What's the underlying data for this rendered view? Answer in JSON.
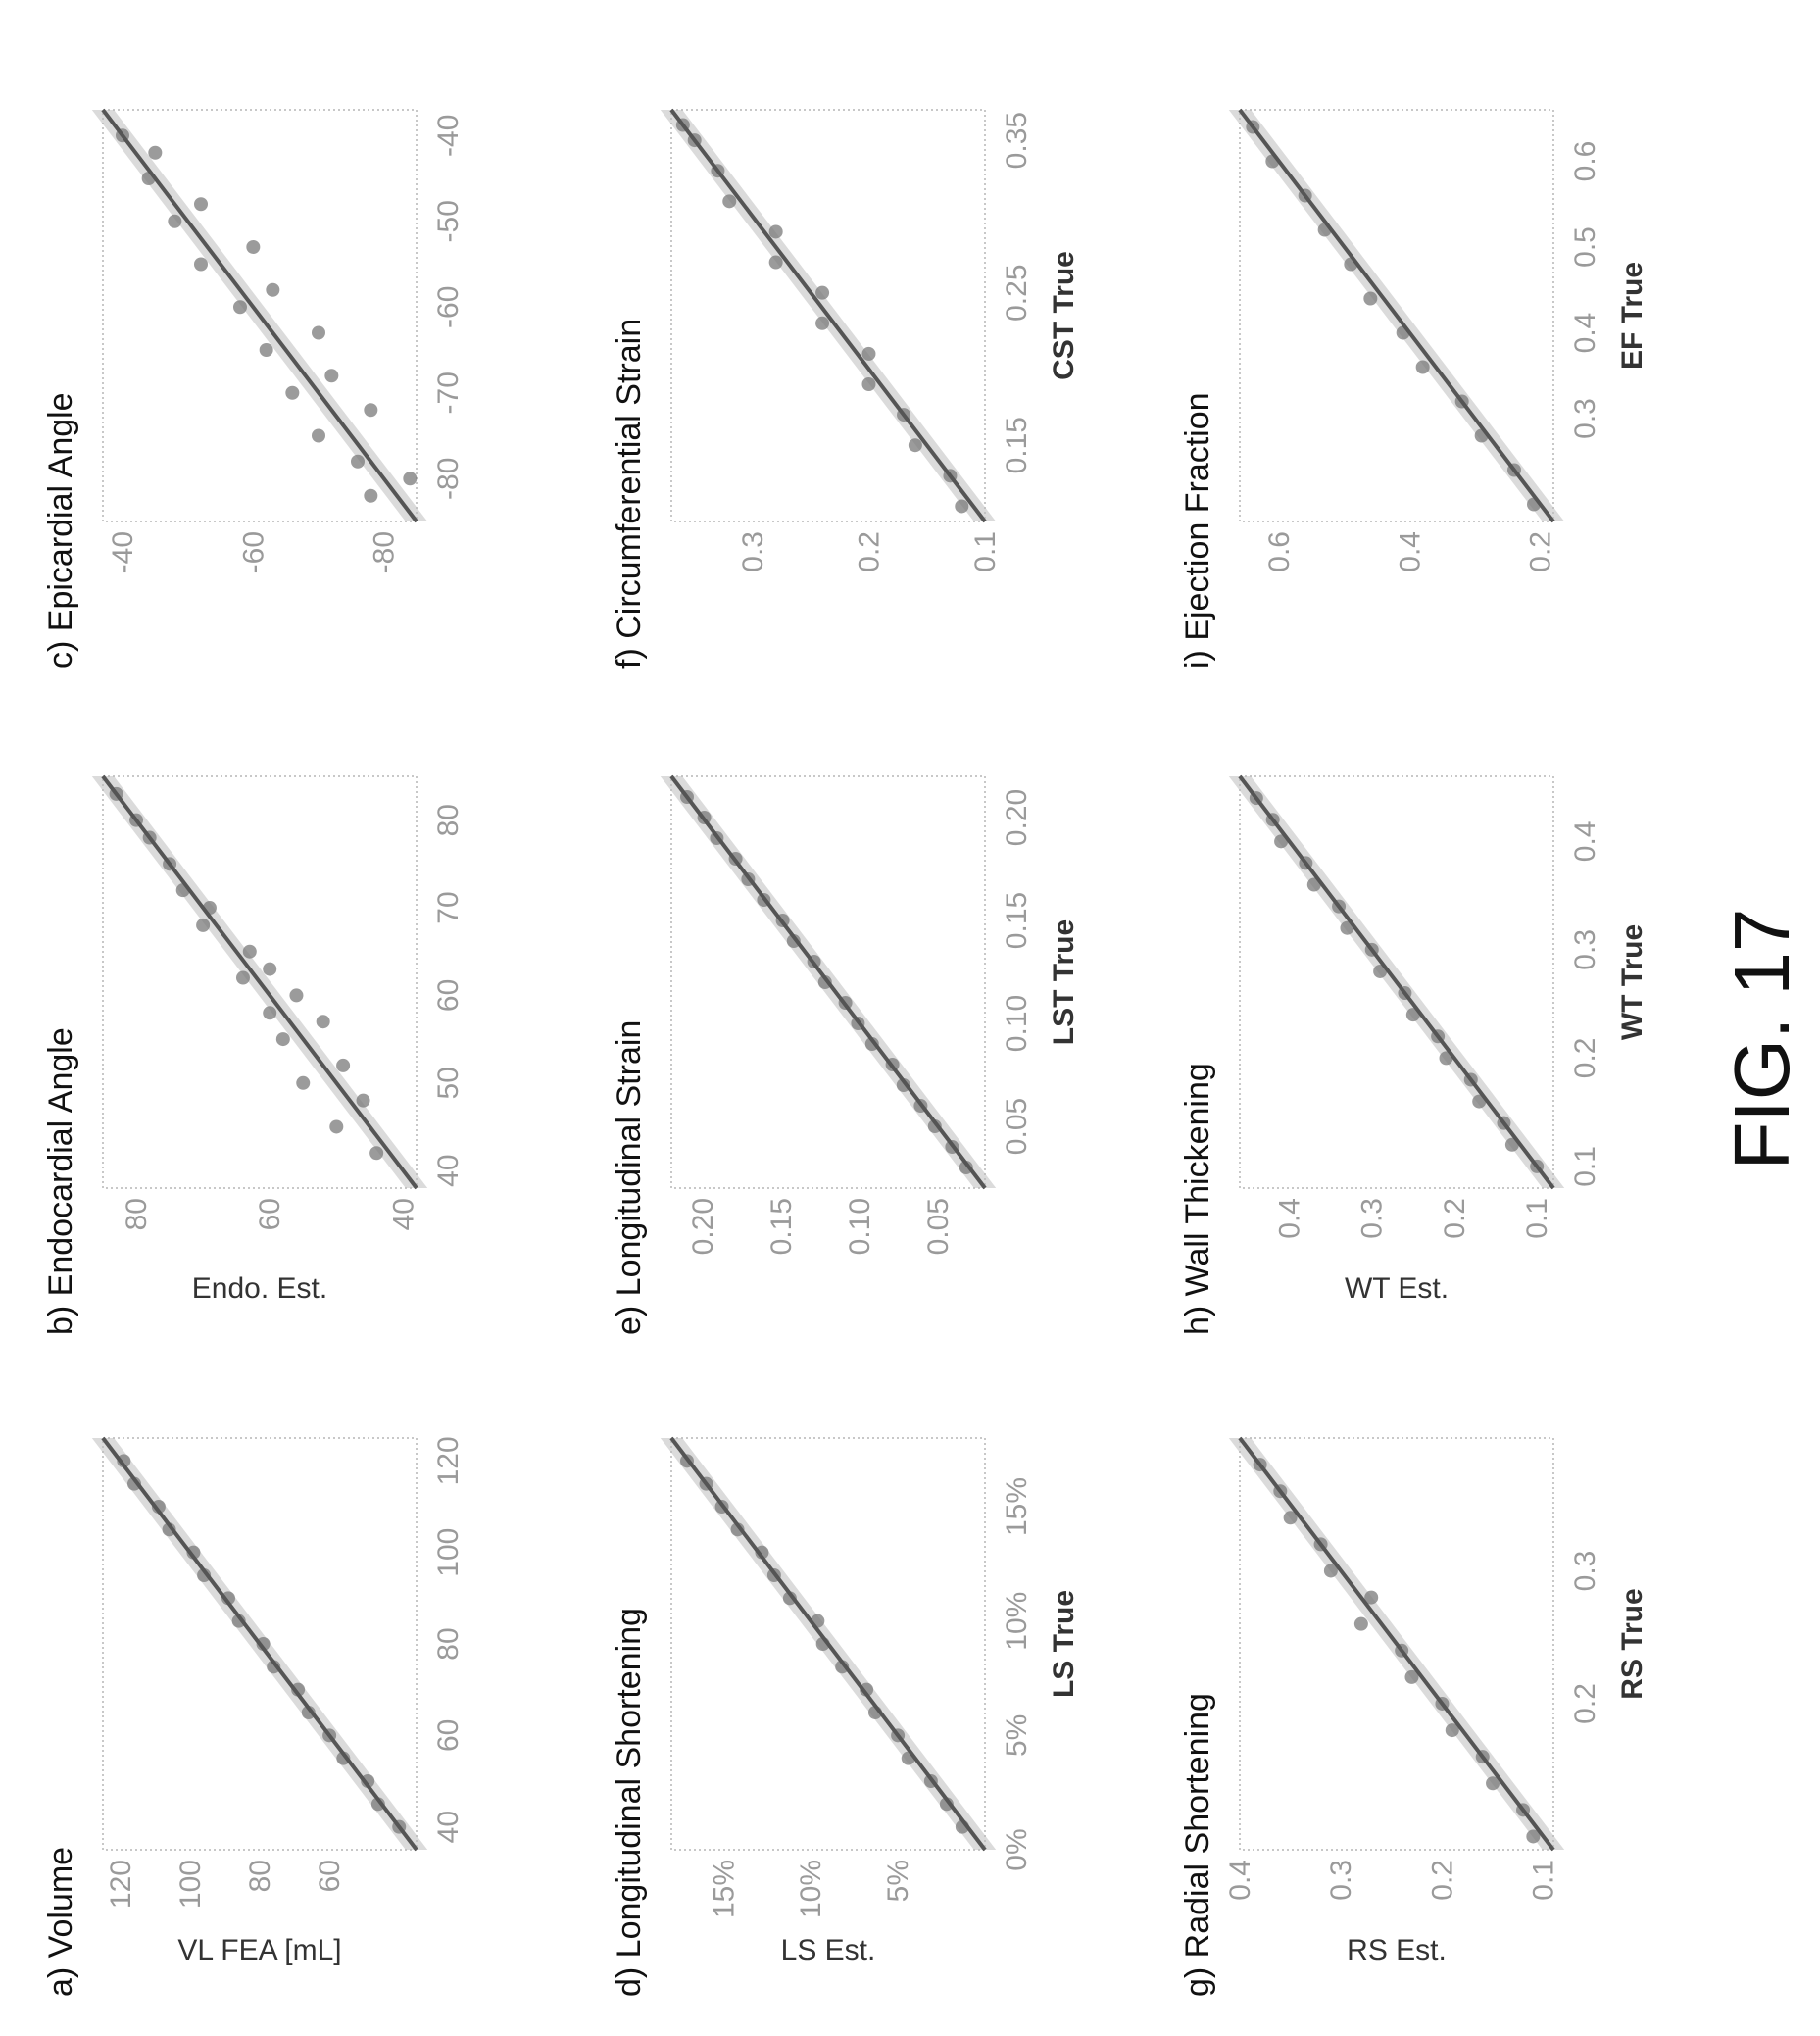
{
  "figure_caption": "FIG. 17",
  "colors": {
    "points": "#7a7a7a",
    "fit": "#555555",
    "tick": "#9a9a9a",
    "frame": "#c8c8c8"
  },
  "chart_data": [
    {
      "type": "scatter",
      "title": "a) Volume",
      "xlabel": "",
      "ylabel": "VL FEA [mL]",
      "xlim": [
        35,
        125
      ],
      "ylim": [
        35,
        125
      ],
      "xticks": [
        {
          "v": 40,
          "t": "40"
        },
        {
          "v": 60,
          "t": "60"
        },
        {
          "v": 80,
          "t": "80"
        },
        {
          "v": 100,
          "t": "100"
        },
        {
          "v": 120,
          "t": "120"
        }
      ],
      "yticks": [
        {
          "v": 60,
          "t": "60"
        },
        {
          "v": 80,
          "t": "80"
        },
        {
          "v": 100,
          "t": "100"
        },
        {
          "v": 120,
          "t": "120"
        }
      ],
      "x": [
        40,
        45,
        50,
        55,
        60,
        65,
        70,
        75,
        80,
        85,
        90,
        95,
        100,
        105,
        110,
        115,
        120
      ],
      "y": [
        40,
        46,
        49,
        56,
        60,
        66,
        69,
        76,
        79,
        86,
        89,
        96,
        99,
        106,
        109,
        116,
        119
      ]
    },
    {
      "type": "scatter",
      "title": "b) Endocardial Angle",
      "xlabel": "",
      "ylabel": "Endo. Est.",
      "xlim": [
        38,
        85
      ],
      "ylim": [
        38,
        85
      ],
      "xticks": [
        {
          "v": 40,
          "t": "40"
        },
        {
          "v": 50,
          "t": "50"
        },
        {
          "v": 60,
          "t": "60"
        },
        {
          "v": 70,
          "t": "70"
        },
        {
          "v": 80,
          "t": "80"
        }
      ],
      "yticks": [
        {
          "v": 40,
          "t": "40"
        },
        {
          "v": 60,
          "t": "60"
        },
        {
          "v": 80,
          "t": "80"
        }
      ],
      "x": [
        42,
        45,
        48,
        50,
        52,
        55,
        57,
        58,
        60,
        62,
        63,
        65,
        68,
        70,
        72,
        75,
        78,
        80,
        83
      ],
      "y": [
        44,
        50,
        46,
        55,
        49,
        58,
        52,
        60,
        56,
        64,
        60,
        63,
        70,
        69,
        73,
        75,
        78,
        80,
        83
      ]
    },
    {
      "type": "scatter",
      "title": "c) Epicardial Angle",
      "xlabel": "",
      "ylabel": "",
      "xlim": [
        -85,
        -37
      ],
      "ylim": [
        -85,
        -37
      ],
      "xticks": [
        {
          "v": -80,
          "t": "-80"
        },
        {
          "v": -70,
          "t": "-70"
        },
        {
          "v": -60,
          "t": "-60"
        },
        {
          "v": -50,
          "t": "-50"
        },
        {
          "v": -40,
          "t": "-40"
        }
      ],
      "yticks": [
        {
          "v": -80,
          "t": "-80"
        },
        {
          "v": -60,
          "t": "-60"
        },
        {
          "v": -40,
          "t": "-40"
        }
      ],
      "x": [
        -82,
        -80,
        -78,
        -75,
        -72,
        -70,
        -68,
        -65,
        -63,
        -60,
        -58,
        -55,
        -53,
        -50,
        -48,
        -45,
        -42,
        -40
      ],
      "y": [
        -78,
        -84,
        -76,
        -70,
        -78,
        -66,
        -72,
        -62,
        -70,
        -58,
        -63,
        -52,
        -60,
        -48,
        -52,
        -44,
        -45,
        -40
      ]
    },
    {
      "type": "scatter",
      "title": "d) Longitudinal Shortening",
      "xlabel": "LS True",
      "ylabel": "LS Est.",
      "xlim": [
        0,
        18
      ],
      "ylim": [
        0,
        18
      ],
      "xticks": [
        {
          "v": 0,
          "t": "0%"
        },
        {
          "v": 5,
          "t": "5%"
        },
        {
          "v": 10,
          "t": "10%"
        },
        {
          "v": 15,
          "t": "15%"
        }
      ],
      "yticks": [
        {
          "v": 5,
          "t": "5%"
        },
        {
          "v": 10,
          "t": "10%"
        },
        {
          "v": 15,
          "t": "15%"
        }
      ],
      "x": [
        1,
        2,
        3,
        4,
        5,
        6,
        7,
        8,
        9,
        10,
        11,
        12,
        13,
        14,
        15,
        16,
        17
      ],
      "y": [
        1.3,
        2.2,
        3.1,
        4.4,
        5.0,
        6.3,
        6.8,
        8.2,
        9.3,
        9.6,
        11.2,
        12.1,
        12.8,
        14.2,
        15.1,
        16.0,
        17.1
      ]
    },
    {
      "type": "scatter",
      "title": "e) Longitudinal Strain",
      "xlabel": "LST True",
      "ylabel": "",
      "xlim": [
        0.02,
        0.22
      ],
      "ylim": [
        0.02,
        0.22
      ],
      "xticks": [
        {
          "v": 0.05,
          "t": "0.05"
        },
        {
          "v": 0.1,
          "t": "0.10"
        },
        {
          "v": 0.15,
          "t": "0.15"
        },
        {
          "v": 0.2,
          "t": "0.20"
        }
      ],
      "yticks": [
        {
          "v": 0.05,
          "t": "0.05"
        },
        {
          "v": 0.1,
          "t": "0.10"
        },
        {
          "v": 0.15,
          "t": "0.15"
        },
        {
          "v": 0.2,
          "t": "0.20"
        }
      ],
      "x": [
        0.03,
        0.04,
        0.05,
        0.06,
        0.07,
        0.08,
        0.09,
        0.1,
        0.11,
        0.12,
        0.13,
        0.14,
        0.15,
        0.16,
        0.17,
        0.18,
        0.19,
        0.2,
        0.21
      ],
      "y": [
        0.032,
        0.041,
        0.052,
        0.061,
        0.072,
        0.079,
        0.092,
        0.101,
        0.109,
        0.122,
        0.129,
        0.142,
        0.149,
        0.161,
        0.171,
        0.179,
        0.191,
        0.199,
        0.21
      ]
    },
    {
      "type": "scatter",
      "title": "f) Circumferential Strain",
      "xlabel": "CST True",
      "ylabel": "",
      "xlim": [
        0.1,
        0.37
      ],
      "ylim": [
        0.1,
        0.37
      ],
      "xticks": [
        {
          "v": 0.15,
          "t": "0.15"
        },
        {
          "v": 0.25,
          "t": "0.25"
        },
        {
          "v": 0.35,
          "t": "0.35"
        }
      ],
      "yticks": [
        {
          "v": 0.1,
          "t": "0.1"
        },
        {
          "v": 0.2,
          "t": "0.2"
        },
        {
          "v": 0.3,
          "t": "0.3"
        }
      ],
      "x": [
        0.11,
        0.13,
        0.15,
        0.17,
        0.19,
        0.21,
        0.23,
        0.25,
        0.27,
        0.29,
        0.31,
        0.33,
        0.35,
        0.36
      ],
      "y": [
        0.12,
        0.13,
        0.16,
        0.17,
        0.2,
        0.2,
        0.24,
        0.24,
        0.28,
        0.28,
        0.32,
        0.33,
        0.35,
        0.36
      ]
    },
    {
      "type": "scatter",
      "title": "g) Radial Shortening",
      "xlabel": "RS True",
      "ylabel": "RS Est.",
      "xlim": [
        0.09,
        0.4
      ],
      "ylim": [
        0.09,
        0.4
      ],
      "xticks": [
        {
          "v": 0.2,
          "t": "0.2"
        },
        {
          "v": 0.3,
          "t": "0.3"
        }
      ],
      "yticks": [
        {
          "v": 0.1,
          "t": "0.1"
        },
        {
          "v": 0.2,
          "t": "0.2"
        },
        {
          "v": 0.3,
          "t": "0.3"
        },
        {
          "v": 0.4,
          "t": "0.4"
        }
      ],
      "x": [
        0.1,
        0.12,
        0.14,
        0.16,
        0.18,
        0.2,
        0.22,
        0.24,
        0.26,
        0.28,
        0.3,
        0.32,
        0.34,
        0.36,
        0.38
      ],
      "y": [
        0.11,
        0.12,
        0.15,
        0.16,
        0.19,
        0.2,
        0.23,
        0.24,
        0.28,
        0.27,
        0.31,
        0.32,
        0.35,
        0.36,
        0.38
      ]
    },
    {
      "type": "scatter",
      "title": "h) Wall Thickening",
      "xlabel": "WT True",
      "ylabel": "WT Est.",
      "xlim": [
        0.08,
        0.46
      ],
      "ylim": [
        0.08,
        0.46
      ],
      "xticks": [
        {
          "v": 0.1,
          "t": "0.1"
        },
        {
          "v": 0.2,
          "t": "0.2"
        },
        {
          "v": 0.3,
          "t": "0.3"
        },
        {
          "v": 0.4,
          "t": "0.4"
        }
      ],
      "yticks": [
        {
          "v": 0.1,
          "t": "0.1"
        },
        {
          "v": 0.2,
          "t": "0.2"
        },
        {
          "v": 0.3,
          "t": "0.3"
        },
        {
          "v": 0.4,
          "t": "0.4"
        }
      ],
      "x": [
        0.1,
        0.12,
        0.14,
        0.16,
        0.18,
        0.2,
        0.22,
        0.24,
        0.26,
        0.28,
        0.3,
        0.32,
        0.34,
        0.36,
        0.38,
        0.4,
        0.42,
        0.44
      ],
      "y": [
        0.1,
        0.13,
        0.14,
        0.17,
        0.18,
        0.21,
        0.22,
        0.25,
        0.26,
        0.29,
        0.3,
        0.33,
        0.34,
        0.37,
        0.38,
        0.41,
        0.42,
        0.44
      ]
    },
    {
      "type": "scatter",
      "title": "i) Ejection Fraction",
      "xlabel": "EF True",
      "ylabel": "",
      "xlim": [
        0.18,
        0.66
      ],
      "ylim": [
        0.18,
        0.66
      ],
      "xticks": [
        {
          "v": 0.3,
          "t": "0.3"
        },
        {
          "v": 0.4,
          "t": "0.4"
        },
        {
          "v": 0.5,
          "t": "0.5"
        },
        {
          "v": 0.6,
          "t": "0.6"
        }
      ],
      "yticks": [
        {
          "v": 0.2,
          "t": "0.2"
        },
        {
          "v": 0.4,
          "t": "0.4"
        },
        {
          "v": 0.6,
          "t": "0.6"
        }
      ],
      "x": [
        0.2,
        0.24,
        0.28,
        0.32,
        0.36,
        0.4,
        0.44,
        0.48,
        0.52,
        0.56,
        0.6,
        0.64
      ],
      "y": [
        0.21,
        0.24,
        0.29,
        0.32,
        0.38,
        0.41,
        0.46,
        0.49,
        0.53,
        0.56,
        0.61,
        0.64
      ]
    }
  ]
}
